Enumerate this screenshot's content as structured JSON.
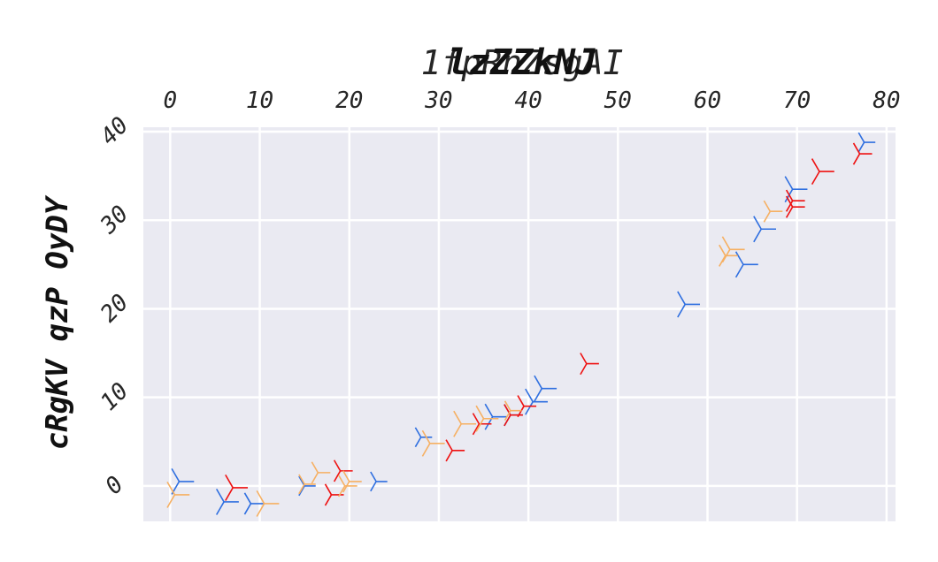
{
  "chart_data": {
    "type": "scatter",
    "title_overlap": "1fpRnZsgAI",
    "title": "lzZZkNJ",
    "xlabel": "",
    "ylabel": "cRgKV qzP OyDY",
    "xlim": [
      -3,
      81
    ],
    "ylim": [
      -4,
      40.5
    ],
    "x_ticks": [
      0,
      10,
      20,
      30,
      40,
      50,
      60,
      70,
      80
    ],
    "y_ticks": [
      0,
      10,
      20,
      30,
      40
    ],
    "x_axis_position": "top",
    "grid": true,
    "marker": "tri_left",
    "colors": [
      "#2f6fe0",
      "#ee1111",
      "#f6b063"
    ],
    "series": [
      {
        "color": "#2f6fe0",
        "points": [
          {
            "x": 1.0,
            "y": 0.5,
            "s": 1.2
          },
          {
            "x": 6.0,
            "y": -1.8,
            "s": 1.2
          },
          {
            "x": 9.0,
            "y": -2.0,
            "s": 1.0
          },
          {
            "x": 15.0,
            "y": 0.0,
            "s": 0.9
          },
          {
            "x": 23.0,
            "y": 0.5,
            "s": 0.9
          },
          {
            "x": 28.0,
            "y": 5.5,
            "s": 0.9
          },
          {
            "x": 36.0,
            "y": 7.8,
            "s": 1.2
          },
          {
            "x": 38.0,
            "y": 8.0,
            "s": 1.0
          },
          {
            "x": 40.5,
            "y": 9.5,
            "s": 1.2
          },
          {
            "x": 41.5,
            "y": 11.0,
            "s": 1.2
          },
          {
            "x": 57.5,
            "y": 20.5,
            "s": 1.2
          },
          {
            "x": 64.0,
            "y": 25.0,
            "s": 1.2
          },
          {
            "x": 66.0,
            "y": 29.0,
            "s": 1.2
          },
          {
            "x": 69.5,
            "y": 33.5,
            "s": 1.2
          },
          {
            "x": 77.5,
            "y": 38.8,
            "s": 0.9
          }
        ]
      },
      {
        "color": "#ee1111",
        "points": [
          {
            "x": 7.0,
            "y": -0.2,
            "s": 1.2
          },
          {
            "x": 18.0,
            "y": -1.0,
            "s": 1.0
          },
          {
            "x": 19.0,
            "y": 1.7,
            "s": 1.0
          },
          {
            "x": 31.5,
            "y": 4.0,
            "s": 1.0
          },
          {
            "x": 34.5,
            "y": 7.0,
            "s": 1.0
          },
          {
            "x": 38.0,
            "y": 8.0,
            "s": 1.0
          },
          {
            "x": 39.5,
            "y": 9.0,
            "s": 1.0
          },
          {
            "x": 46.5,
            "y": 13.8,
            "s": 1.0
          },
          {
            "x": 69.5,
            "y": 31.5,
            "s": 1.0
          },
          {
            "x": 69.5,
            "y": 32.2,
            "s": 1.0
          },
          {
            "x": 72.5,
            "y": 35.5,
            "s": 1.2
          },
          {
            "x": 77.0,
            "y": 37.5,
            "s": 1.0
          }
        ]
      },
      {
        "color": "#f6b063",
        "points": [
          {
            "x": 0.5,
            "y": -1.0,
            "s": 1.2
          },
          {
            "x": 10.5,
            "y": -2.0,
            "s": 1.2
          },
          {
            "x": 15.0,
            "y": 0.2,
            "s": 0.9
          },
          {
            "x": 16.5,
            "y": 1.5,
            "s": 1.0
          },
          {
            "x": 19.5,
            "y": 0.0,
            "s": 1.0
          },
          {
            "x": 20.0,
            "y": 0.5,
            "s": 1.0
          },
          {
            "x": 29.0,
            "y": 4.8,
            "s": 1.2
          },
          {
            "x": 32.5,
            "y": 7.0,
            "s": 1.2
          },
          {
            "x": 35.0,
            "y": 7.6,
            "s": 1.2
          },
          {
            "x": 38.0,
            "y": 8.5,
            "s": 0.9
          },
          {
            "x": 62.0,
            "y": 26.0,
            "s": 1.0
          },
          {
            "x": 62.5,
            "y": 26.7,
            "s": 1.2
          },
          {
            "x": 67.0,
            "y": 31.0,
            "s": 1.0
          }
        ]
      }
    ]
  }
}
